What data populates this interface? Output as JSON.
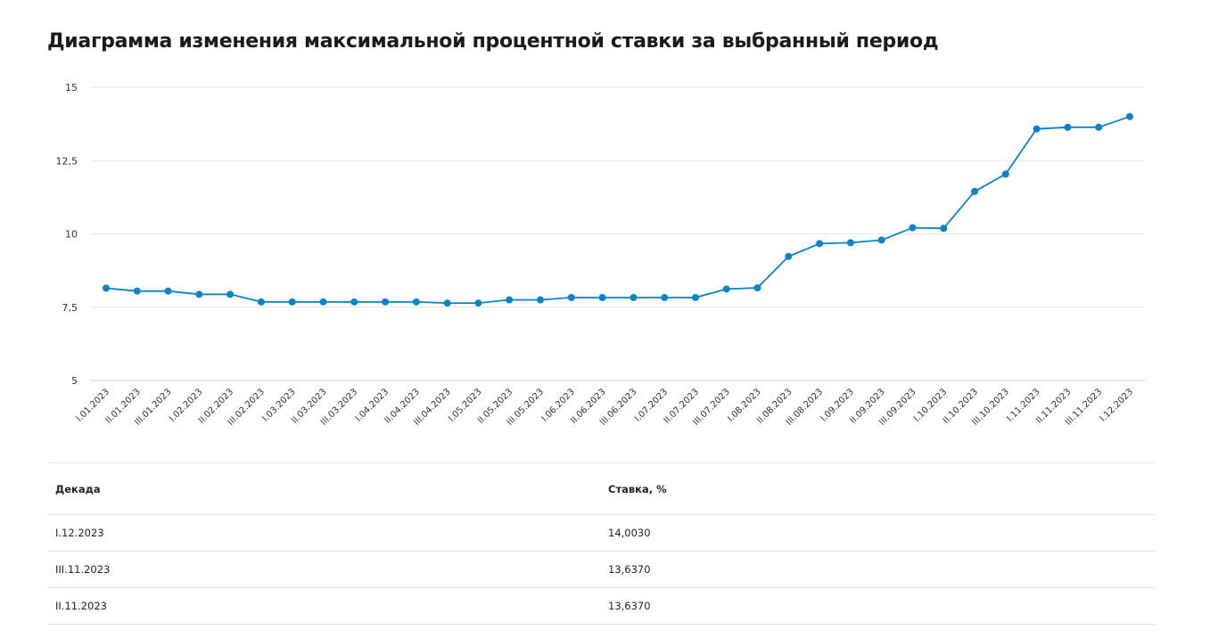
{
  "title": "Диаграмма изменения максимальной процентной ставки за выбранный период",
  "chart_data": {
    "type": "line",
    "title": "Диаграмма изменения максимальной процентной ставки за выбранный период",
    "xlabel": "",
    "ylabel": "",
    "ylim": [
      5,
      15
    ],
    "yticks": [
      "15",
      "12,5",
      "10",
      "7,5",
      "5"
    ],
    "grid": true,
    "color": "#0a84c6",
    "categories": [
      "I.01.2023",
      "II.01.2023",
      "III.01.2023",
      "I.02.2023",
      "II.02.2023",
      "III.02.2023",
      "I.03.2023",
      "II.03.2023",
      "III.03.2023",
      "I.04.2023",
      "II.04.2023",
      "III.04.2023",
      "I.05.2023",
      "II.05.2023",
      "III.05.2023",
      "I.06.2023",
      "II.06.2023",
      "III.06.2023",
      "I.07.2023",
      "II.07.2023",
      "III.07.2023",
      "I.08.2023",
      "II.08.2023",
      "III.08.2023",
      "I.09.2023",
      "II.09.2023",
      "III.09.2023",
      "I.10.2023",
      "II.10.2023",
      "III.10.2023",
      "I.11.2023",
      "II.11.2023",
      "III.11.2023",
      "I.12.2023"
    ],
    "values": [
      8.15,
      8.05,
      8.05,
      7.94,
      7.94,
      7.68,
      7.68,
      7.68,
      7.68,
      7.68,
      7.68,
      7.64,
      7.64,
      7.75,
      7.75,
      7.83,
      7.83,
      7.83,
      7.83,
      7.83,
      8.12,
      8.16,
      9.23,
      9.67,
      9.7,
      9.79,
      10.21,
      10.19,
      11.45,
      12.04,
      13.58,
      13.637,
      13.637,
      14.003
    ]
  },
  "table": {
    "headers": [
      "Декада",
      "Ставка, %"
    ],
    "rows": [
      [
        "I.12.2023",
        "14,0030"
      ],
      [
        "III.11.2023",
        "13,6370"
      ],
      [
        "II.11.2023",
        "13,6370"
      ]
    ]
  }
}
